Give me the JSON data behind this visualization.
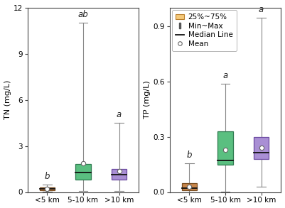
{
  "TN": {
    "categories": [
      "<5 km",
      "5-10 km",
      ">10 km"
    ],
    "colors": [
      "#c8864b",
      "#5abf80",
      "#a98fd4"
    ],
    "edge_colors": [
      "#7a4e22",
      "#2d7a4f",
      "#6b4aa0"
    ],
    "whisker_color": "#888888",
    "boxes": [
      {
        "min": 0.03,
        "q1": 0.12,
        "median": 0.2,
        "q3": 0.3,
        "max": 0.48,
        "mean": 0.22
      },
      {
        "min": 0.05,
        "q1": 0.82,
        "median": 1.28,
        "q3": 1.82,
        "max": 11.0,
        "mean": 1.85
      },
      {
        "min": 0.05,
        "q1": 0.8,
        "median": 1.15,
        "q3": 1.5,
        "max": 4.5,
        "mean": 1.38
      }
    ],
    "stat_labels": [
      "b",
      "ab",
      "a"
    ],
    "ylabel": "TN (mg/L)",
    "ylim": [
      0,
      12
    ],
    "yticks": [
      0,
      3,
      6,
      9,
      12
    ]
  },
  "TP": {
    "categories": [
      "<5 km",
      "5-10 km",
      ">10 km"
    ],
    "colors": [
      "#c8864b",
      "#5abf80",
      "#a98fd4"
    ],
    "edge_colors": [
      "#7a4e22",
      "#2d7a4f",
      "#6b4aa0"
    ],
    "whisker_color": "#888888",
    "boxes": [
      {
        "min": 0.0,
        "q1": 0.008,
        "median": 0.022,
        "q3": 0.048,
        "max": 0.155,
        "mean": 0.028
      },
      {
        "min": 0.003,
        "q1": 0.148,
        "median": 0.172,
        "q3": 0.328,
        "max": 0.585,
        "mean": 0.228
      },
      {
        "min": 0.028,
        "q1": 0.178,
        "median": 0.215,
        "q3": 0.298,
        "max": 0.945,
        "mean": 0.242
      }
    ],
    "stat_labels": [
      "b",
      "a",
      "a"
    ],
    "ylabel": "TP (mg/L)",
    "ylim": [
      0,
      1.0
    ],
    "yticks": [
      0.0,
      0.3,
      0.6,
      0.9
    ]
  },
  "legend": {
    "box_facecolor": "#f5c97a",
    "box_edgecolor": "#b87d2a"
  },
  "box_width": 0.42,
  "cap_ratio": 0.3,
  "background_color": "#ffffff",
  "ylabel_fontsize": 8,
  "tick_fontsize": 7.5,
  "stat_label_fontsize": 8.5,
  "legend_fontsize": 7.5
}
